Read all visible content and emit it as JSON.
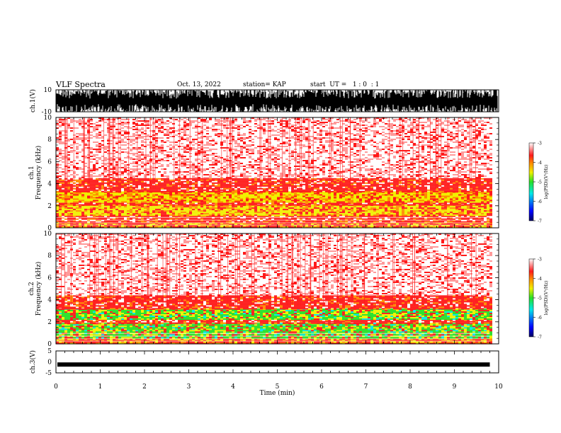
{
  "header": {
    "title": "VLF Spectra",
    "date": "Oct. 13, 2022",
    "station": "station= KAP",
    "start": "start  UT =   1 : 0  : 1"
  },
  "chart_data": [
    {
      "type": "line",
      "name": "ch1-waveform",
      "ylabel": "ch.1(V)",
      "ylim": [
        -10,
        10
      ],
      "yticks": [
        "10",
        "-10"
      ],
      "xlim": [
        0,
        10
      ]
    },
    {
      "type": "heatmap",
      "name": "ch1-spectrogram",
      "ylabel": "ch.1\nFrequency  (kHz)",
      "ylabel_line1": "ch.1",
      "ylabel_line2": "Frequency  (kHz)",
      "ylim": [
        0,
        10
      ],
      "yticks": [
        0,
        2,
        4,
        6,
        8,
        10
      ],
      "xlim": [
        0,
        10
      ],
      "data_end_min": 9.8,
      "bands": [
        {
          "from": 0.0,
          "to": 0.5,
          "level": "red-yellow"
        },
        {
          "from": 0.5,
          "to": 1.1,
          "level": "red"
        },
        {
          "from": 1.1,
          "to": 2.1,
          "level": "yellow"
        },
        {
          "from": 2.1,
          "to": 2.4,
          "level": "red"
        },
        {
          "from": 2.4,
          "to": 3.3,
          "level": "yellow"
        },
        {
          "from": 3.3,
          "to": 4.5,
          "level": "red"
        },
        {
          "from": 4.5,
          "to": 10.0,
          "level": "light-red"
        }
      ],
      "colorbar": {
        "label": "log(PSD)(V²/Hz)",
        "ticks": [
          "-3",
          "-4",
          "-5",
          "-6",
          "-7"
        ],
        "range": [
          -7,
          -3
        ]
      }
    },
    {
      "type": "heatmap",
      "name": "ch2-spectrogram",
      "ylabel_line1": "ch.2",
      "ylabel_line2": "Frequency  (kHz)",
      "ylim": [
        0,
        10
      ],
      "yticks": [
        0,
        2,
        4,
        6,
        8,
        10
      ],
      "xlim": [
        0,
        10
      ],
      "data_end_min": 9.8,
      "bands": [
        {
          "from": 0.0,
          "to": 0.6,
          "level": "red-yellow"
        },
        {
          "from": 0.6,
          "to": 1.9,
          "level": "green"
        },
        {
          "from": 1.9,
          "to": 2.2,
          "level": "red"
        },
        {
          "from": 2.2,
          "to": 3.2,
          "level": "green"
        },
        {
          "from": 3.2,
          "to": 4.4,
          "level": "red"
        },
        {
          "from": 4.4,
          "to": 10.0,
          "level": "light-red"
        }
      ],
      "colorbar": {
        "label": "log(PSD)(V²/Hz)",
        "ticks": [
          "-3",
          "-4",
          "-5",
          "-6",
          "-7"
        ],
        "range": [
          -7,
          -3
        ]
      }
    },
    {
      "type": "line",
      "name": "ch3-waveform",
      "ylabel": "ch.3(V)",
      "ylim": [
        -5,
        5
      ],
      "yticks": [
        "5",
        "0",
        "-5"
      ],
      "level": -1.2,
      "xlabel": "Time  (min)",
      "xlim": [
        0,
        10
      ],
      "xticks": [
        0,
        1,
        2,
        3,
        4,
        5,
        6,
        7,
        8,
        9,
        10
      ]
    }
  ],
  "colors": {
    "wave": "#000000",
    "light_red": "#ff9a9a",
    "red": "#ff1a1a",
    "orange": "#ff8c00",
    "yellow": "#f0f000",
    "green": "#28e028",
    "cyan": "#00e8e8",
    "blue": "#0000ff",
    "navy": "#000060"
  }
}
